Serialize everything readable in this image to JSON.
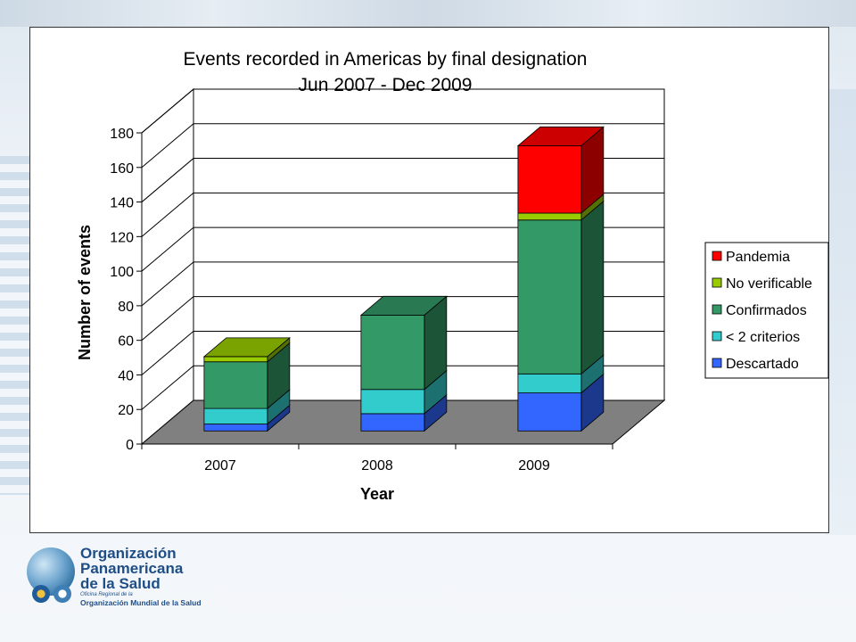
{
  "chart_data": {
    "type": "bar",
    "stacked": true,
    "three_d": true,
    "title": "Events recorded in Americas by final designation",
    "subtitle": "Jun 2007 - Dec 2009",
    "xlabel": "Year",
    "ylabel": "Number of events",
    "categories": [
      "2007",
      "2008",
      "2009"
    ],
    "ylim": [
      0,
      180
    ],
    "yticks": [
      0,
      20,
      40,
      60,
      80,
      100,
      120,
      140,
      160,
      180
    ],
    "grid": true,
    "legend_position": "right",
    "series": [
      {
        "name": "Descartado",
        "color": "#3366ff",
        "values": [
          4,
          10,
          22
        ]
      },
      {
        "name": "< 2 criterios",
        "color": "#33cccc",
        "values": [
          9,
          14,
          11
        ]
      },
      {
        "name": "Confirmados",
        "color": "#339966",
        "values": [
          27,
          43,
          89
        ]
      },
      {
        "name": "No verificable",
        "color": "#99cc00",
        "values": [
          3,
          0,
          4
        ]
      },
      {
        "name": "Pandemia",
        "color": "#ff0000",
        "values": [
          0,
          0,
          39
        ]
      }
    ]
  },
  "logo": {
    "title": "Organización\nPanamericana\nde la Salud",
    "sub1": "Oficina Regional de la",
    "sub2": "Organización Mundial de la Salud"
  }
}
